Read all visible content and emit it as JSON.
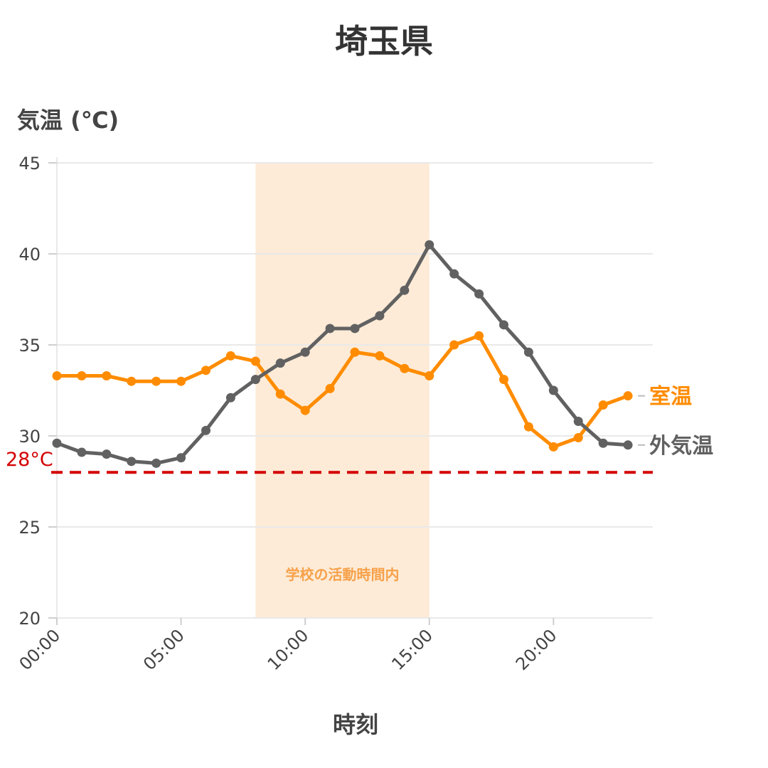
{
  "chart_data": {
    "type": "line",
    "title": "埼玉県",
    "ylabel": "気温 (℃)",
    "xlabel": "時刻",
    "ylim": [
      20,
      45
    ],
    "yticks": [
      20,
      25,
      30,
      35,
      40,
      45
    ],
    "xlim_hours": [
      0,
      24
    ],
    "xtick_hours": [
      0,
      5,
      10,
      15,
      20
    ],
    "xtick_labels": [
      "00:00",
      "05:00",
      "10:00",
      "15:00",
      "20:00"
    ],
    "x_hours": [
      0,
      1,
      2,
      3,
      4,
      5,
      6,
      7,
      8,
      9,
      10,
      11,
      12,
      13,
      14,
      15,
      16,
      17,
      18,
      19,
      20,
      21,
      22,
      23
    ],
    "grid": true,
    "series": [
      {
        "name": "室温",
        "color": "#ff8c00",
        "values": [
          33.3,
          33.3,
          33.3,
          33.0,
          33.0,
          33.0,
          33.6,
          34.4,
          34.1,
          32.3,
          31.4,
          32.6,
          34.6,
          34.4,
          33.7,
          33.3,
          35.0,
          35.5,
          33.1,
          30.5,
          29.4,
          29.9,
          31.7,
          32.2
        ]
      },
      {
        "name": "外気温",
        "color": "#616161",
        "values": [
          29.6,
          29.1,
          29.0,
          28.6,
          28.5,
          28.8,
          30.3,
          32.1,
          33.1,
          34.0,
          34.6,
          35.9,
          35.9,
          36.6,
          38.0,
          40.5,
          38.9,
          37.8,
          36.1,
          34.6,
          32.5,
          30.8,
          29.6,
          29.5
        ]
      }
    ],
    "threshold": {
      "value": 28,
      "label": "28°C",
      "color": "#d40000"
    },
    "shaded_region": {
      "start_hour": 8,
      "end_hour": 15,
      "label": "学校の活動時間内",
      "fill": "#fdebd7",
      "label_color": "#f7a14a"
    }
  }
}
